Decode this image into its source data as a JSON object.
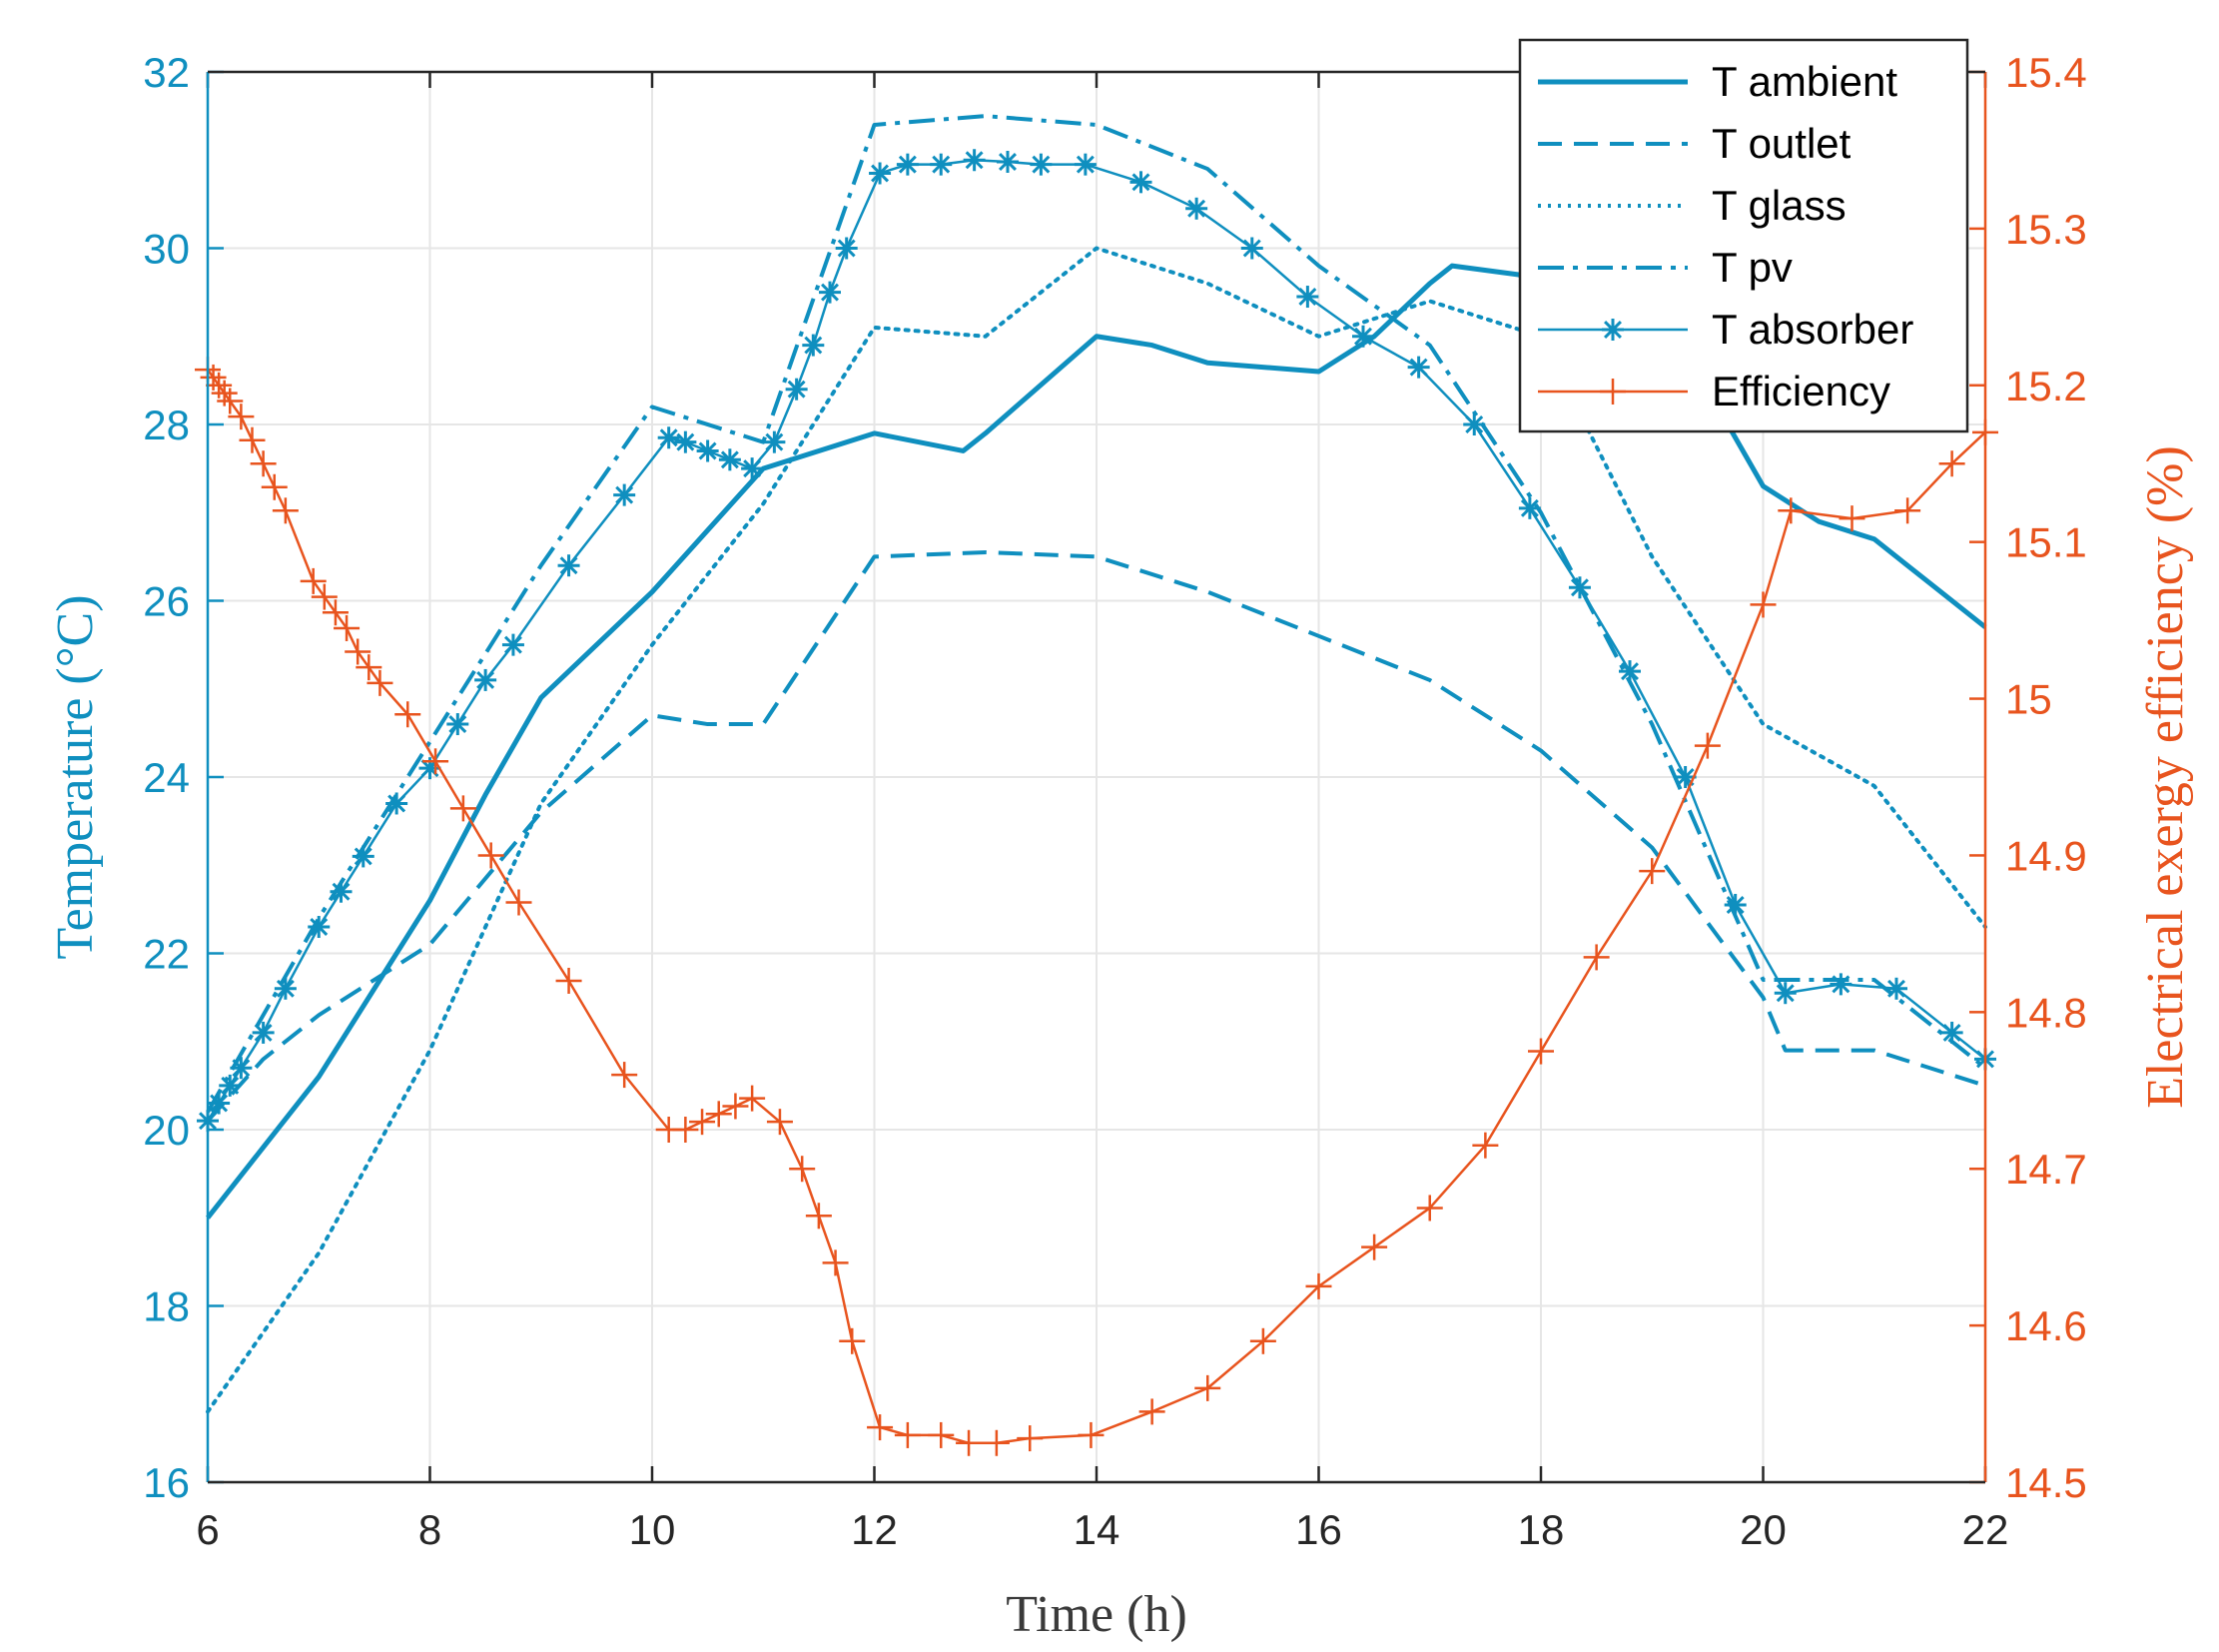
{
  "chart_data": {
    "type": "line",
    "xlabel": "Time (h)",
    "ylabel_left": "Temperature (°C)",
    "ylabel_right": "Electrical exergy efficiency (%)",
    "xlim": [
      6,
      22
    ],
    "ylim_left": [
      16,
      32
    ],
    "ylim_right": [
      14.5,
      15.4
    ],
    "x_ticks": [
      "6",
      "8",
      "10",
      "12",
      "14",
      "16",
      "18",
      "20",
      "22"
    ],
    "y_ticks_left": [
      "16",
      "18",
      "20",
      "22",
      "24",
      "26",
      "28",
      "30",
      "32"
    ],
    "y_ticks_right": [
      "14.5",
      "14.6",
      "14.7",
      "14.8",
      "14.9",
      "15",
      "15.1",
      "15.2",
      "15.3",
      "15.4"
    ],
    "grid": true,
    "legend_position": "top-right",
    "colors": {
      "temperature": "#0f8fbf",
      "efficiency": "#e8541e"
    },
    "series": [
      {
        "name": "T ambient",
        "axis": "left",
        "style": "solid",
        "marker": "none",
        "points": [
          [
            6,
            19.0
          ],
          [
            7,
            20.6
          ],
          [
            8,
            22.6
          ],
          [
            8.5,
            23.8
          ],
          [
            9,
            24.9
          ],
          [
            10,
            26.1
          ],
          [
            11,
            27.5
          ],
          [
            12,
            27.9
          ],
          [
            12.8,
            27.7
          ],
          [
            13,
            27.9
          ],
          [
            14,
            29.0
          ],
          [
            14.5,
            28.9
          ],
          [
            15,
            28.7
          ],
          [
            16,
            28.6
          ],
          [
            16.5,
            29.0
          ],
          [
            17,
            29.6
          ],
          [
            17.2,
            29.8
          ],
          [
            17.8,
            29.7
          ],
          [
            18.5,
            29.3
          ],
          [
            19,
            29.0
          ],
          [
            19.5,
            28.4
          ],
          [
            20,
            27.3
          ],
          [
            20.5,
            26.9
          ],
          [
            21,
            26.7
          ],
          [
            21.5,
            26.2
          ],
          [
            22,
            25.7
          ]
        ]
      },
      {
        "name": "T outlet",
        "axis": "left",
        "style": "dashed",
        "marker": "none",
        "points": [
          [
            6,
            20.1
          ],
          [
            6.5,
            20.8
          ],
          [
            7,
            21.3
          ],
          [
            8,
            22.1
          ],
          [
            9,
            23.6
          ],
          [
            10,
            24.7
          ],
          [
            10.5,
            24.6
          ],
          [
            11,
            24.6
          ],
          [
            12,
            26.5
          ],
          [
            13,
            26.55
          ],
          [
            14,
            26.5
          ],
          [
            15,
            26.1
          ],
          [
            16,
            25.6
          ],
          [
            17,
            25.1
          ],
          [
            18,
            24.3
          ],
          [
            19,
            23.2
          ],
          [
            20,
            21.5
          ],
          [
            20.2,
            20.9
          ],
          [
            21,
            20.9
          ],
          [
            22,
            20.5
          ]
        ]
      },
      {
        "name": "T glass",
        "axis": "left",
        "style": "dotted",
        "marker": "none",
        "points": [
          [
            6,
            16.8
          ],
          [
            7,
            18.6
          ],
          [
            8,
            20.9
          ],
          [
            9,
            23.7
          ],
          [
            10,
            25.5
          ],
          [
            11,
            27.1
          ],
          [
            12,
            29.1
          ],
          [
            13,
            29.0
          ],
          [
            14,
            30.0
          ],
          [
            15,
            29.6
          ],
          [
            16,
            29.0
          ],
          [
            17,
            29.4
          ],
          [
            18,
            29.0
          ],
          [
            19,
            26.5
          ],
          [
            20,
            24.6
          ],
          [
            21,
            23.9
          ],
          [
            22,
            22.3
          ]
        ]
      },
      {
        "name": "T pv",
        "axis": "left",
        "style": "dashdot",
        "marker": "none",
        "points": [
          [
            6,
            20.2
          ],
          [
            7,
            22.4
          ],
          [
            8,
            24.4
          ],
          [
            9,
            26.4
          ],
          [
            10,
            28.2
          ],
          [
            11,
            27.8
          ],
          [
            12,
            31.4
          ],
          [
            13,
            31.5
          ],
          [
            14,
            31.4
          ],
          [
            15,
            30.9
          ],
          [
            16,
            29.8
          ],
          [
            17,
            28.9
          ],
          [
            18,
            27.0
          ],
          [
            19,
            24.6
          ],
          [
            20,
            21.7
          ],
          [
            21,
            21.7
          ],
          [
            22,
            20.7
          ]
        ]
      },
      {
        "name": "T absorber",
        "axis": "left",
        "style": "solid",
        "marker": "asterisk",
        "points": [
          [
            6,
            20.1
          ],
          [
            6.1,
            20.3
          ],
          [
            6.2,
            20.5
          ],
          [
            6.3,
            20.7
          ],
          [
            6.5,
            21.1
          ],
          [
            6.7,
            21.6
          ],
          [
            7,
            22.3
          ],
          [
            7.2,
            22.7
          ],
          [
            7.4,
            23.1
          ],
          [
            7.7,
            23.7
          ],
          [
            8,
            24.1
          ],
          [
            8.25,
            24.6
          ],
          [
            8.5,
            25.1
          ],
          [
            8.75,
            25.5
          ],
          [
            9.25,
            26.4
          ],
          [
            9.75,
            27.2
          ],
          [
            10.15,
            27.85
          ],
          [
            10.3,
            27.8
          ],
          [
            10.5,
            27.7
          ],
          [
            10.7,
            27.6
          ],
          [
            10.9,
            27.5
          ],
          [
            11.1,
            27.8
          ],
          [
            11.3,
            28.4
          ],
          [
            11.45,
            28.9
          ],
          [
            11.6,
            29.5
          ],
          [
            11.75,
            30.0
          ],
          [
            12.05,
            30.85
          ],
          [
            12.3,
            30.95
          ],
          [
            12.6,
            30.95
          ],
          [
            12.9,
            31.0
          ],
          [
            13.2,
            30.98
          ],
          [
            13.5,
            30.95
          ],
          [
            13.9,
            30.95
          ],
          [
            14.4,
            30.75
          ],
          [
            14.9,
            30.45
          ],
          [
            15.4,
            30.0
          ],
          [
            15.9,
            29.45
          ],
          [
            16.4,
            29.0
          ],
          [
            16.9,
            28.65
          ],
          [
            17.4,
            28.0
          ],
          [
            17.9,
            27.05
          ],
          [
            18.35,
            26.15
          ],
          [
            18.8,
            25.2
          ],
          [
            19.3,
            24.0
          ],
          [
            19.75,
            22.55
          ],
          [
            20.2,
            21.55
          ],
          [
            20.7,
            21.65
          ],
          [
            21.2,
            21.6
          ],
          [
            21.7,
            21.1
          ],
          [
            22,
            20.8
          ]
        ]
      },
      {
        "name": "Efficiency",
        "axis": "right",
        "style": "solid",
        "marker": "plus",
        "points": [
          [
            6,
            15.21
          ],
          [
            6.05,
            15.205
          ],
          [
            6.1,
            15.2
          ],
          [
            6.15,
            15.195
          ],
          [
            6.2,
            15.19
          ],
          [
            6.3,
            15.18
          ],
          [
            6.4,
            15.165
          ],
          [
            6.5,
            15.15
          ],
          [
            6.6,
            15.135
          ],
          [
            6.7,
            15.12
          ],
          [
            6.95,
            15.075
          ],
          [
            7.05,
            15.065
          ],
          [
            7.15,
            15.055
          ],
          [
            7.25,
            15.045
          ],
          [
            7.35,
            15.03
          ],
          [
            7.45,
            15.02
          ],
          [
            7.55,
            15.01
          ],
          [
            7.8,
            14.99
          ],
          [
            8.05,
            14.96
          ],
          [
            8.3,
            14.93
          ],
          [
            8.55,
            14.9
          ],
          [
            8.8,
            14.87
          ],
          [
            9.25,
            14.82
          ],
          [
            9.75,
            14.76
          ],
          [
            10.15,
            14.725
          ],
          [
            10.3,
            14.725
          ],
          [
            10.45,
            14.73
          ],
          [
            10.6,
            14.735
          ],
          [
            10.75,
            14.74
          ],
          [
            10.9,
            14.745
          ],
          [
            11.15,
            14.73
          ],
          [
            11.35,
            14.7
          ],
          [
            11.5,
            14.67
          ],
          [
            11.65,
            14.64
          ],
          [
            11.8,
            14.59
          ],
          [
            12.05,
            14.535
          ],
          [
            12.3,
            14.53
          ],
          [
            12.6,
            14.53
          ],
          [
            12.85,
            14.525
          ],
          [
            13.1,
            14.525
          ],
          [
            13.4,
            14.528
          ],
          [
            13.95,
            14.53
          ],
          [
            14.5,
            14.545
          ],
          [
            15.0,
            14.56
          ],
          [
            15.5,
            14.59
          ],
          [
            16.0,
            14.625
          ],
          [
            16.5,
            14.65
          ],
          [
            17.0,
            14.675
          ],
          [
            17.5,
            14.715
          ],
          [
            18.0,
            14.775
          ],
          [
            18.5,
            14.835
          ],
          [
            19.0,
            14.89
          ],
          [
            19.5,
            14.97
          ],
          [
            20.0,
            15.06
          ],
          [
            20.25,
            15.12
          ],
          [
            20.8,
            15.115
          ],
          [
            21.3,
            15.12
          ],
          [
            21.7,
            15.15
          ],
          [
            22,
            15.17
          ]
        ]
      }
    ]
  }
}
